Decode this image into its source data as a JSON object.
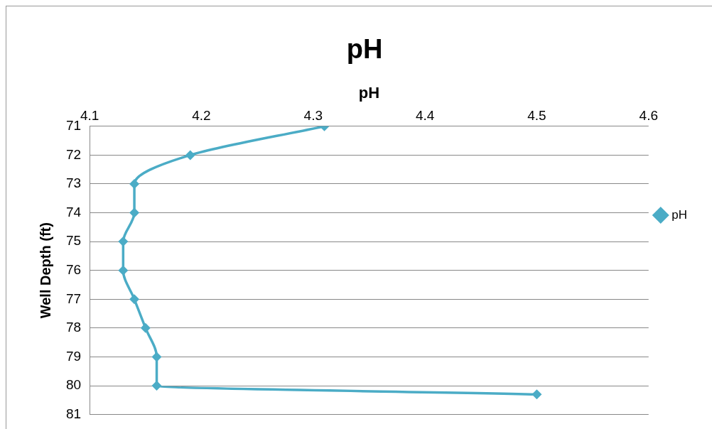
{
  "chart_data": {
    "type": "line",
    "title": "pH",
    "xlabel": "pH",
    "ylabel": "Well Depth (ft)",
    "x": [
      4.31,
      4.19,
      4.14,
      4.14,
      4.13,
      4.13,
      4.14,
      4.15,
      4.16,
      4.16,
      4.5
    ],
    "series": [
      {
        "name": "pH",
        "color": "#4bacc6",
        "values": [
          71,
          72,
          73,
          74,
          75,
          76,
          77,
          78,
          79,
          80,
          80.3
        ]
      }
    ],
    "xlim": [
      4.1,
      4.6
    ],
    "xticks": [
      4.1,
      4.2,
      4.3,
      4.4,
      4.5,
      4.6
    ],
    "ylim": [
      81,
      71
    ],
    "yticks": [
      71,
      72,
      73,
      74,
      75,
      76,
      77,
      78,
      79,
      80,
      81
    ],
    "grid": "y",
    "legend": "right",
    "marker": "diamond",
    "line_style": "solid"
  }
}
